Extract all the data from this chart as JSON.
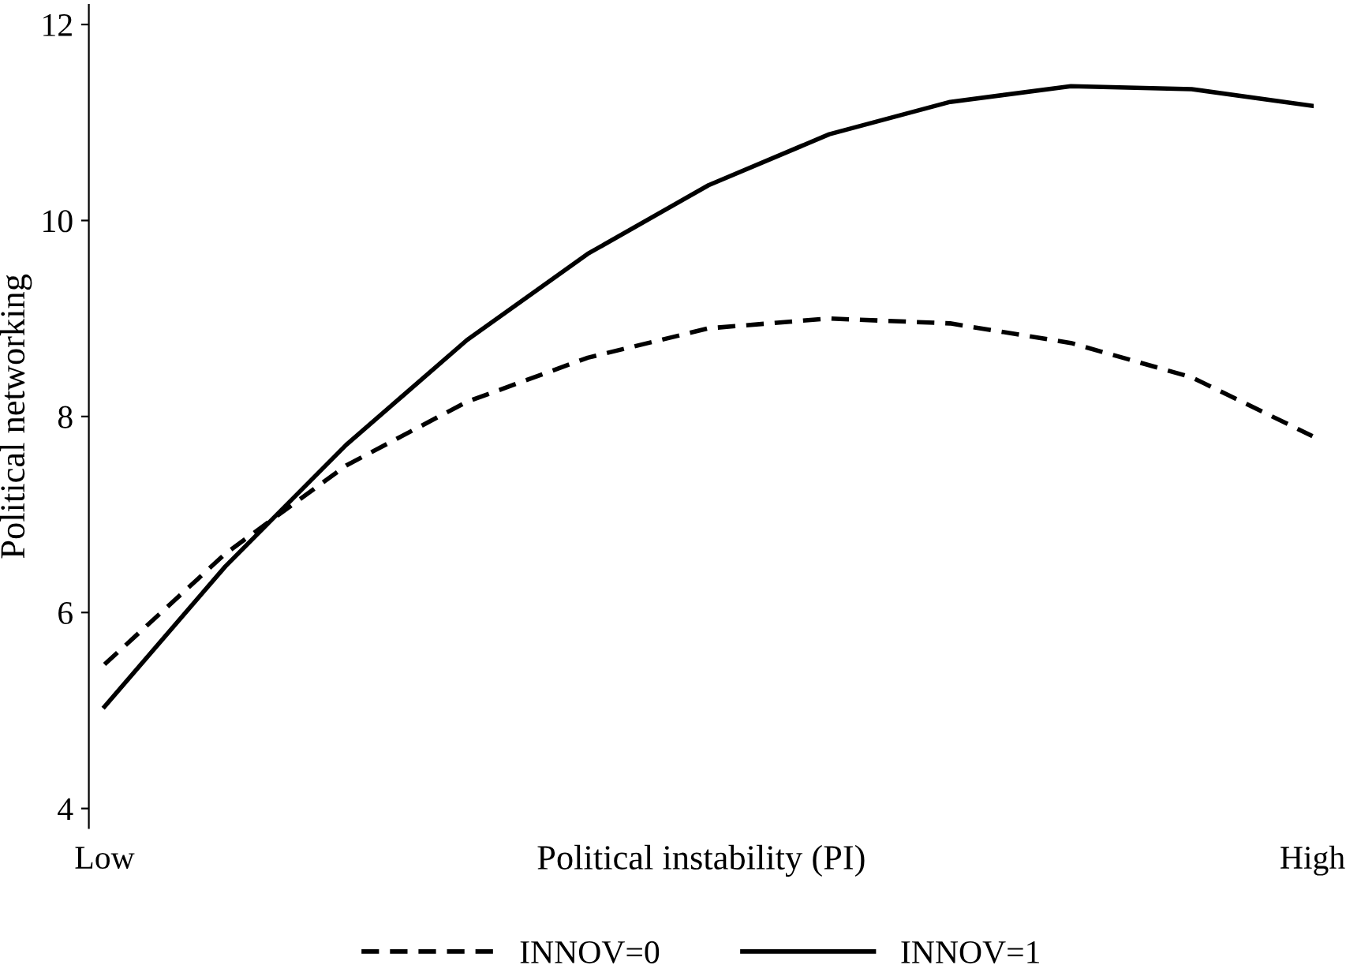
{
  "chart_data": {
    "type": "line",
    "xlabel": "Political instability (PI)",
    "ylabel": "Political networking",
    "categories": [
      "Low",
      null,
      null,
      null,
      null,
      null,
      null,
      null,
      null,
      null,
      "High"
    ],
    "ylim": [
      3.8,
      12.2
    ],
    "yticks": [
      4,
      6,
      8,
      10,
      12
    ],
    "grid": false,
    "legend": "bottom",
    "marker": "none",
    "series": [
      {
        "name": "INNOV=0",
        "color": "#000000",
        "line_style": "dashed",
        "values": [
          5.47,
          6.6,
          7.5,
          8.15,
          8.6,
          8.9,
          9.0,
          8.95,
          8.75,
          8.4,
          7.8
        ]
      },
      {
        "name": "INNOV=1",
        "color": "#000000",
        "line_style": "solid",
        "values": [
          5.04,
          6.47,
          7.71,
          8.78,
          9.66,
          10.36,
          10.88,
          11.21,
          11.37,
          11.34,
          11.17
        ]
      }
    ]
  }
}
